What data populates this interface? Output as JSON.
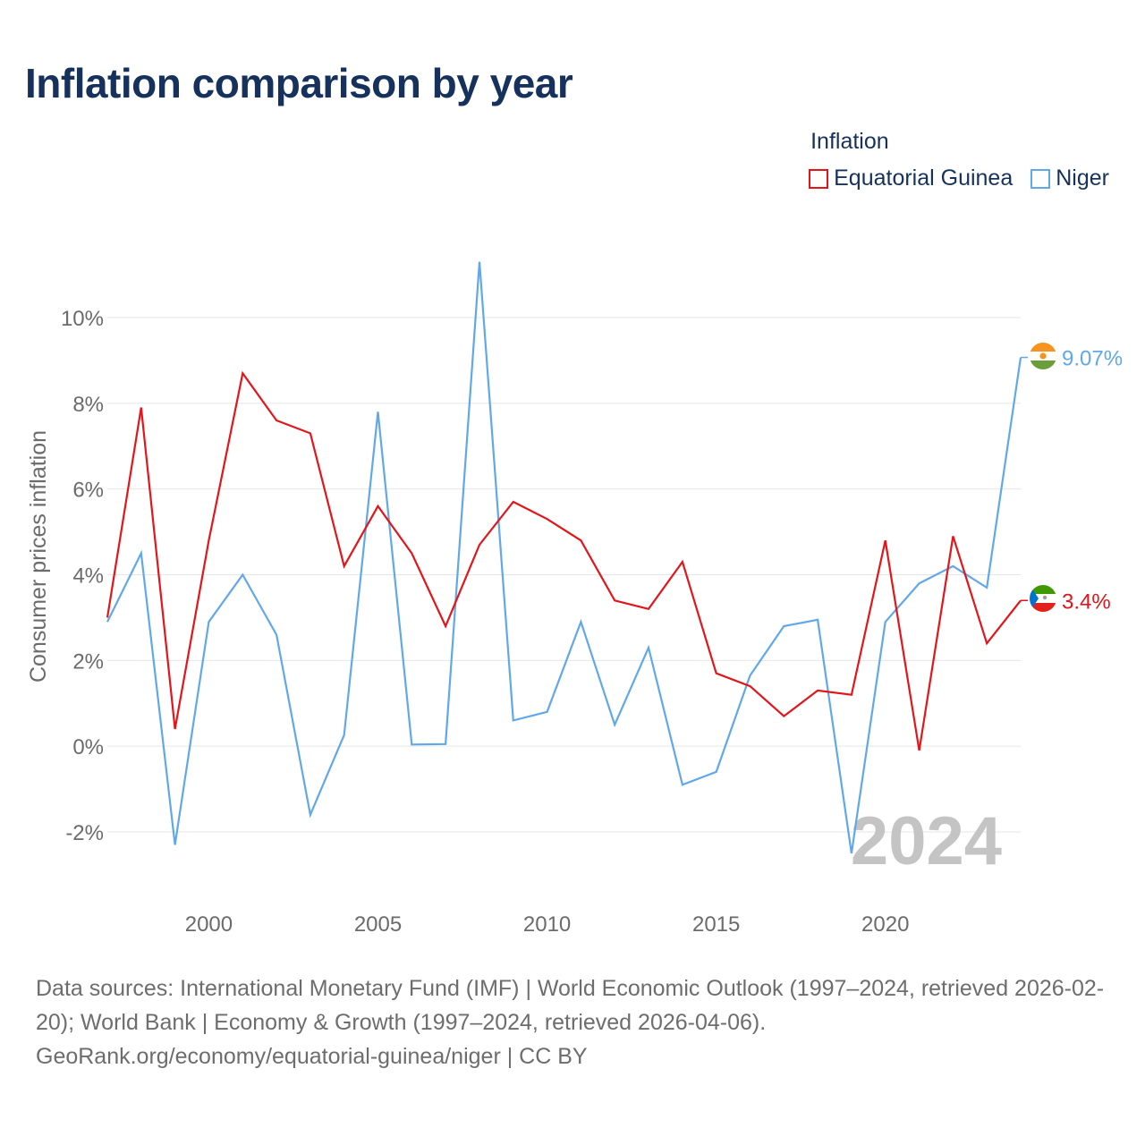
{
  "title": "Inflation comparison by year",
  "legend": {
    "title": "Inflation",
    "items": [
      {
        "label": "Equatorial Guinea",
        "color": "#e3151a"
      },
      {
        "label": "Niger",
        "color": "#61a8e8"
      }
    ]
  },
  "watermark_year": "2024",
  "footer": {
    "sources": "Data sources: International Monetary Fund (IMF) | World Economic Outlook (1997–2024, retrieved 2026-02-20); World Bank | Economy & Growth (1997–2024, retrieved 2026-04-06).",
    "attribution": "GeoRank.org/economy/equatorial-guinea/niger | CC BY"
  },
  "chart_data": {
    "type": "line",
    "title": "Inflation comparison by year",
    "xlabel": "",
    "ylabel": "Consumer prices inflation",
    "xlim": [
      1997,
      2024
    ],
    "ylim": [
      -3.5,
      12
    ],
    "y_ticks": [
      -2,
      0,
      2,
      4,
      6,
      8,
      10
    ],
    "y_tick_labels": [
      "-2%",
      "0%",
      "2%",
      "4%",
      "6%",
      "8%",
      "10%"
    ],
    "x_ticks": [
      2000,
      2005,
      2010,
      2015,
      2020
    ],
    "x_tick_labels": [
      "2000",
      "2005",
      "2010",
      "2015",
      "2020"
    ],
    "grid": true,
    "legend_position": "top-right",
    "x": [
      1997,
      1998,
      1999,
      2000,
      2001,
      2002,
      2003,
      2004,
      2005,
      2006,
      2007,
      2008,
      2009,
      2010,
      2011,
      2012,
      2013,
      2014,
      2015,
      2016,
      2017,
      2018,
      2019,
      2020,
      2021,
      2022,
      2023,
      2024
    ],
    "series": [
      {
        "name": "Equatorial Guinea",
        "color": "#e3151a",
        "end_label": "3.4%",
        "flag": "equatorial-guinea-flag",
        "values": [
          3.0,
          7.9,
          0.4,
          4.8,
          8.7,
          7.6,
          7.3,
          4.2,
          5.6,
          4.5,
          2.8,
          4.7,
          5.7,
          5.3,
          4.8,
          3.4,
          3.2,
          4.3,
          1.7,
          1.4,
          0.7,
          1.3,
          1.2,
          4.8,
          -0.1,
          4.9,
          2.4,
          3.4
        ]
      },
      {
        "name": "Niger",
        "color": "#61a8e8",
        "end_label": "9.07%",
        "flag": "niger-flag",
        "values": [
          2.9,
          4.5,
          -2.3,
          2.9,
          4.0,
          2.6,
          -1.6,
          0.26,
          7.8,
          0.04,
          0.05,
          11.3,
          0.6,
          0.8,
          2.9,
          0.5,
          2.3,
          -0.9,
          -0.6,
          1.65,
          2.8,
          2.95,
          -2.5,
          2.9,
          3.8,
          4.2,
          3.7,
          9.07
        ]
      }
    ]
  }
}
